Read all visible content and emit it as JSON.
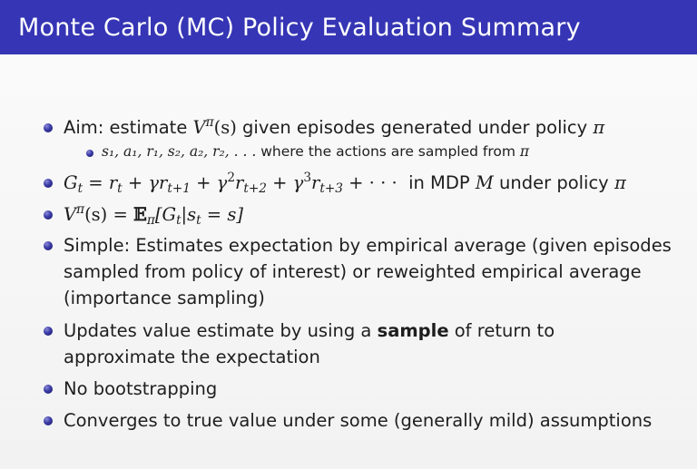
{
  "slide": {
    "title": "Monte Carlo (MC) Policy Evaluation Summary"
  },
  "bullets": {
    "aim": {
      "prefix": "Aim: estimate ",
      "value_fn": "V",
      "pi": "π",
      "arg": "(s)",
      "middle": " given episodes generated under policy ",
      "policy": "π"
    },
    "aim_sub": {
      "sequence": "s₁, a₁, r₁, s₂, a₂, r₂, . . .",
      "text": " where the actions are sampled from ",
      "policy": "π"
    },
    "return_def": {
      "G": "G",
      "t": "t",
      "eq": " = ",
      "r": "r",
      "plus1": " + γr",
      "sub1": "t+1",
      "plus2": " + γ",
      "sup2": "2",
      "r2": "r",
      "sub2": "t+2",
      "plus3": " + γ",
      "sup3": "3",
      "r3": "r",
      "sub3": "t+3",
      "tail": " + · · ·",
      "in_text": "  in MDP ",
      "mdp": "M",
      "under_text": " under policy ",
      "policy": "π"
    },
    "value_def": {
      "V": "V",
      "pi": "π",
      "lhs_arg": "(s) = ",
      "E": "𝔼",
      "E_sub": "π",
      "open": "[G",
      "g_sub": "t",
      "bar": "|s",
      "s_sub": "t",
      "close": " = s]"
    },
    "simple": "Simple: Estimates expectation by empirical average (given episodes sampled from policy of interest) or reweighted empirical average (importance sampling)",
    "updates": {
      "before": "Updates value estimate by using a ",
      "bold": "sample",
      "after": " of return to approximate the expectation"
    },
    "no_bootstrap": "No bootstrapping",
    "converges": "Converges to true value under some (generally mild) assumptions"
  },
  "colors": {
    "title_bar": "#3535b5",
    "title_text": "#ffffff",
    "bullet": "#3a3aa6",
    "body_text": "#1e1e1e"
  }
}
